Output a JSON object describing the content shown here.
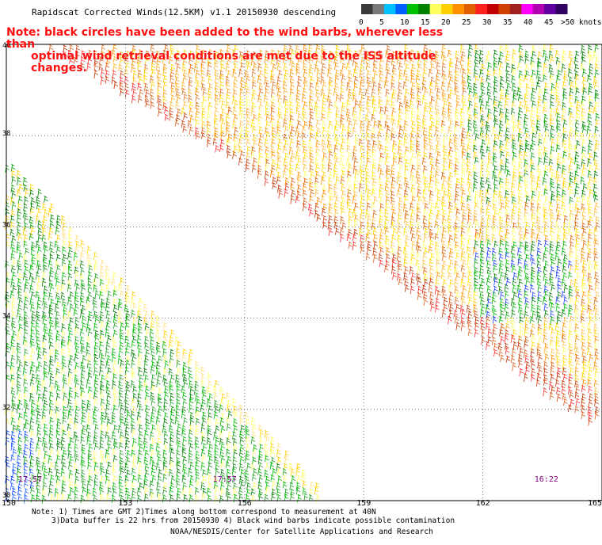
{
  "header": {
    "title": "Rapidscat Corrected Winds(12.5KM) v1.1 20150930 descending",
    "note_line1": "Note: black circles have been added to the wind barbs, wherever less than",
    "note_line2": "optimal wind retrieval conditions are met due to the ISS altitude changes."
  },
  "legend": {
    "labels": [
      "0",
      "5",
      "10",
      "15",
      "20",
      "25",
      "30",
      "35",
      "40",
      "45",
      ">50 knots"
    ],
    "colors": [
      "#3a3a3a",
      "#7a7a7a",
      "#00c0ff",
      "#0060ff",
      "#00c000",
      "#008000",
      "#ffff60",
      "#ffd000",
      "#ff9000",
      "#e06000",
      "#ff2020",
      "#c00000",
      "#d04000",
      "#a02020",
      "#ff00ff",
      "#b000b0",
      "#6000a0",
      "#300060"
    ]
  },
  "footer": {
    "line1": "Note: 1) Times are GMT 2)Times along bottom correspond to measurement at 40N",
    "line2": "3)Data buffer is 22 hrs from 20150930 4) Black wind barbs indicate possible contamination",
    "line3": "NOAA/NESDIS/Center for Satellite Applications and Research"
  },
  "chart_data": {
    "type": "scatter",
    "xlim": [
      150,
      165
    ],
    "ylim": [
      30,
      40
    ],
    "x_ticks": [
      "150",
      "153",
      "156",
      "159",
      "162",
      "165"
    ],
    "y_ticks": [
      "40",
      "38",
      "36",
      "34",
      "32",
      "30"
    ],
    "grid": true,
    "pass_times": [
      {
        "label": "17:57",
        "x": 150.3
      },
      {
        "label": "17:57",
        "x": 155.2
      },
      {
        "label": "16:22",
        "x": 163.3
      }
    ],
    "wind_speed_bins_knots": [
      0,
      5,
      10,
      15,
      20,
      25,
      30,
      35,
      40,
      45,
      50
    ]
  },
  "colors": {
    "note": "#ff1010",
    "pass_time": "#800080",
    "grid": "#555555"
  }
}
